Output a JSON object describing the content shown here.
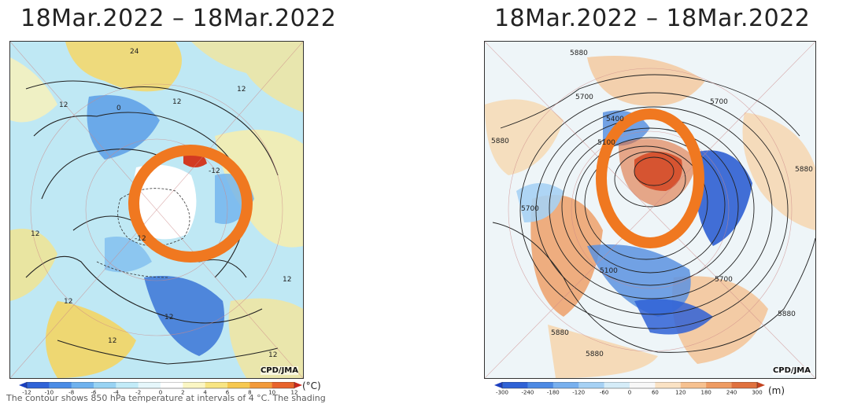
{
  "left_panel": {
    "title": "18Mar.2022  –  18Mar.2022",
    "credit": "CPD/JMA",
    "contour_labels": [
      "24",
      "12",
      "12",
      "0",
      "12",
      "-12",
      "12",
      "-12",
      "12",
      "12",
      "12",
      "12",
      "12"
    ],
    "colorbar": {
      "ticks": [
        "-12",
        "-10",
        "-8",
        "-6",
        "-4",
        "-2",
        "0",
        "2",
        "4",
        "6",
        "8",
        "10",
        "12"
      ],
      "unit": "(°C)",
      "colors": [
        "#1a3fbf",
        "#2f63d8",
        "#4a8ce6",
        "#6fb2ee",
        "#98d3f3",
        "#c2ebf8",
        "#e6f7fb",
        "#ffffff",
        "#fbf6c4",
        "#f8e583",
        "#f6c850",
        "#f29a3a",
        "#e8632b",
        "#c8281e"
      ]
    }
  },
  "right_panel": {
    "title": "18Mar.2022  –  18Mar.2022",
    "credit": "CPD/JMA",
    "contour_labels": [
      "5880",
      "5700",
      "5700",
      "5400",
      "5100",
      "5880",
      "5700",
      "5880",
      "5100",
      "5700",
      "5880",
      "5880",
      "5880"
    ],
    "colorbar": {
      "ticks": [
        "-300",
        "-240",
        "-180",
        "-120",
        "-60",
        "0",
        "60",
        "120",
        "180",
        "240",
        "300"
      ],
      "unit": "(m)",
      "colors": [
        "#1d3fbf",
        "#2f62d6",
        "#4d8ae4",
        "#78b0ee",
        "#a6d1f4",
        "#d5ecf8",
        "#f7f7f7",
        "#fae2c4",
        "#f6c190",
        "#ee9b62",
        "#e0713e",
        "#c4431f"
      ]
    }
  },
  "caption": "The contour shows 850 hPa temperature at intervals of 4 °C. The shading"
}
